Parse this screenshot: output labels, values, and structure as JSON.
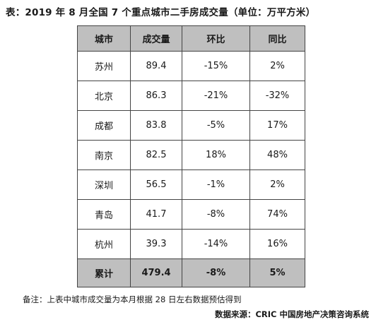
{
  "title": "表：2019 年 8 月全国 7 个重点城市二手房成交量（单位：万平方米）",
  "table": {
    "headers": [
      "城市",
      "成交量",
      "环比",
      "同比"
    ],
    "rows": [
      [
        "苏州",
        "89.4",
        "-15%",
        "2%"
      ],
      [
        "北京",
        "86.3",
        "-21%",
        "-32%"
      ],
      [
        "成都",
        "83.8",
        "-5%",
        "17%"
      ],
      [
        "南京",
        "82.5",
        "18%",
        "48%"
      ],
      [
        "深圳",
        "56.5",
        "-1%",
        "2%"
      ],
      [
        "青岛",
        "41.7",
        "-8%",
        "74%"
      ],
      [
        "杭州",
        "39.3",
        "-14%",
        "16%"
      ]
    ],
    "total": [
      "累计",
      "479.4",
      "-8%",
      "5%"
    ]
  },
  "note": "备注：上表中城市成交量为本月根据 28 日左右数据预估得到",
  "source": "数据来源：CRIC 中国房地产决策咨询系统"
}
